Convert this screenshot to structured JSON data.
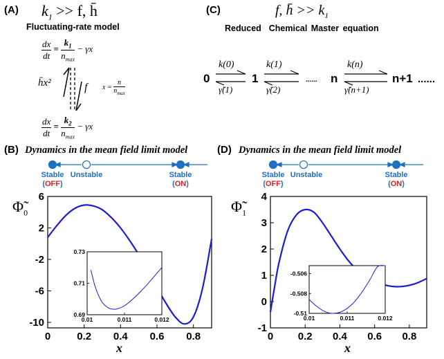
{
  "panelA": {
    "label": "(A)",
    "condition_k": "k",
    "condition_sub": "1",
    "condition_rest": ">> f, h̄",
    "title": "Fluctuating-rate model",
    "eq_top": {
      "lhs_num": "dx",
      "lhs_den": "dt",
      "rhs_num": "k",
      "rhs_num_sub": "1",
      "rhs_den": "n",
      "rhs_den_sub": "max",
      "tail": "− γx"
    },
    "eq_bottom": {
      "lhs_num": "dx",
      "lhs_den": "dt",
      "rhs_num": "k",
      "rhs_num_sub": "2",
      "rhs_den": "n",
      "rhs_den_sub": "max",
      "tail": "− γx"
    },
    "rate_left": "h̄x²",
    "rate_right": "f",
    "x_def_lhs": "x =",
    "x_def_num": "n",
    "x_def_den": "n",
    "x_def_den_sub": "max"
  },
  "panelC": {
    "label": "(C)",
    "condition": "f, h̄ >> k",
    "condition_sub": "1",
    "title_a": "Reduced",
    "title_b": "Chemical Master equation",
    "states": [
      "0",
      "1",
      "n",
      "n+1"
    ],
    "ellipsis_small": "......",
    "ellipsis_big": "......",
    "forward": [
      "k(0)",
      "k(1)",
      "k(n)"
    ],
    "backward": [
      "γ̃(1)",
      "γ̃(2)",
      "γ̃(n+1)"
    ]
  },
  "panelB": {
    "label": "(B)",
    "dyn_title": "Dynamics in the mean field limit model",
    "stable_left": "Stable",
    "off": "OFF",
    "unstable": "Unstable",
    "stable_right": "Stable",
    "on": "ON",
    "ylabel": "Φ̃",
    "ylabel_sub": "0",
    "xlabel": "x",
    "yticks": [
      "6",
      "2",
      "-2",
      "-6",
      "-10"
    ],
    "xticks": [
      "0",
      "0.2",
      "0.4",
      "0.6",
      "0.8"
    ],
    "inset_yticks": [
      "0.73",
      "0.71",
      "0.69"
    ],
    "inset_xticks": [
      "0.01",
      "0.011",
      "0.012"
    ]
  },
  "panelD": {
    "label": "(D)",
    "dyn_title": "Dynamics in the mean field limit model",
    "stable_left": "Stable",
    "off": "OFF",
    "unstable": "Unstable",
    "stable_right": "Stable",
    "on": "ON",
    "ylabel": "Φ̃",
    "ylabel_sub": "1",
    "xlabel": "x",
    "yticks": [
      "4",
      "3",
      "2",
      "1",
      "0",
      "-1"
    ],
    "xticks": [
      "0",
      "0.2",
      "0.4",
      "0.6",
      "0.8"
    ],
    "inset_yticks": [
      "-0.506",
      "-0.508",
      "-0.51"
    ],
    "inset_xticks": [
      "0.01",
      "0.011",
      "0.012"
    ]
  },
  "chart_data": [
    {
      "type": "line",
      "ylim": [
        -10.7,
        6
      ],
      "xlim": [
        0,
        0.9
      ],
      "series": [
        {
          "x": [
            0,
            0.05,
            0.1,
            0.15,
            0.2,
            0.25,
            0.3,
            0.35,
            0.4,
            0.45,
            0.5,
            0.55,
            0.6,
            0.65,
            0.7,
            0.75,
            0.8,
            0.85,
            0.9
          ],
          "y": [
            0.8,
            2.3,
            3.6,
            4.5,
            4.9,
            4.8,
            4.3,
            3.3,
            2.0,
            0.4,
            -1.4,
            -3.5,
            -5.6,
            -7.6,
            -9.3,
            -10.2,
            -9.3,
            -5.7,
            0.6
          ]
        }
      ],
      "inset": {
        "xlim": [
          0.01,
          0.012
        ],
        "ylim": [
          0.69,
          0.73
        ],
        "x": [
          0.0101,
          0.0102,
          0.0103,
          0.0104,
          0.0105,
          0.0106,
          0.0107,
          0.0108,
          0.011,
          0.0112,
          0.0114,
          0.0116,
          0.0118,
          0.012
        ],
        "y": [
          0.7185,
          0.709,
          0.7025,
          0.698,
          0.6955,
          0.694,
          0.6935,
          0.6937,
          0.6957,
          0.6995,
          0.704,
          0.709,
          0.7145,
          0.72
        ]
      }
    },
    {
      "type": "line",
      "ylim": [
        -1,
        4
      ],
      "xlim": [
        0,
        0.9
      ],
      "series": [
        {
          "x": [
            0,
            0.025,
            0.05,
            0.1,
            0.15,
            0.2,
            0.25,
            0.3,
            0.35,
            0.4,
            0.45,
            0.5,
            0.55,
            0.6,
            0.65,
            0.7,
            0.75,
            0.8,
            0.85,
            0.9
          ],
          "y": [
            -0.4,
            0.6,
            1.5,
            2.7,
            3.3,
            3.5,
            3.4,
            3.0,
            2.5,
            2.0,
            1.55,
            1.2,
            0.95,
            0.78,
            0.65,
            0.58,
            0.57,
            0.62,
            0.72,
            0.88
          ]
        }
      ],
      "inset": {
        "xlim": [
          0.01,
          0.012
        ],
        "ylim": [
          -0.51,
          -0.5052
        ],
        "x": [
          0.01,
          0.0102,
          0.0104,
          0.0106,
          0.0108,
          0.011,
          0.0112,
          0.0114,
          0.0116,
          0.0118,
          0.012
        ],
        "y": [
          -0.5086,
          -0.5093,
          -0.5098,
          -0.51,
          -0.5099,
          -0.5095,
          -0.5088,
          -0.5078,
          -0.5066,
          -0.5053,
          -0.5052
        ]
      }
    }
  ]
}
